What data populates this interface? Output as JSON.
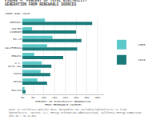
{
  "chart_data": {
    "type": "bar",
    "orientation": "horizontal",
    "title": "FIGURE 4. PERCENT OF TOTAL ELECTRICITY\nGENERATION FROM RENEWABLE SOURCES",
    "subtitle": "2005 AND 2015",
    "categories": [
      "GERMANY",
      "UNITED\nKINGDOM",
      "EU-28",
      "CALIFORNIA",
      "BRAZIL",
      "U.S.\nWITH CAL",
      "INDIA",
      "CHINA",
      "RUSSIA"
    ],
    "series": [
      {
        "name": "2005",
        "color": "#5cc8c8",
        "values": [
          10.5,
          4.5,
          14.0,
          11.5,
          5.5,
          9.0,
          8.5,
          7.0,
          1.0
        ]
      },
      {
        "name": "2015",
        "color": "#1a7a7a",
        "values": [
          32.5,
          25.0,
          27.5,
          25.5,
          19.0,
          13.5,
          13.0,
          11.5,
          1.5
        ]
      }
    ],
    "xlabel": "PERCENT OF ELECTRICITY GENERATION\nFROM RENEWABLE SOURCES",
    "xlim": [
      0,
      38
    ],
    "xticks": [
      {
        "value": 0,
        "label": "0%"
      },
      {
        "value": 5,
        "label": "5%"
      },
      {
        "value": 10,
        "label": "10%"
      },
      {
        "value": 15,
        "label": "15%"
      },
      {
        "value": 20,
        "label": "20%"
      },
      {
        "value": 25,
        "label": "25%"
      },
      {
        "value": 30,
        "label": "30%"
      },
      {
        "value": 35,
        "label": "35%"
      }
    ],
    "grid": true,
    "legend": "right",
    "annotations": [
      "NOTE: In California-specific data, Renewables not including hydroelectric is large\nhydroelectric. Sources: U.S. Energy Information Administration, California Energy Commission.\n2017-01 / 31-11-041"
    ]
  }
}
